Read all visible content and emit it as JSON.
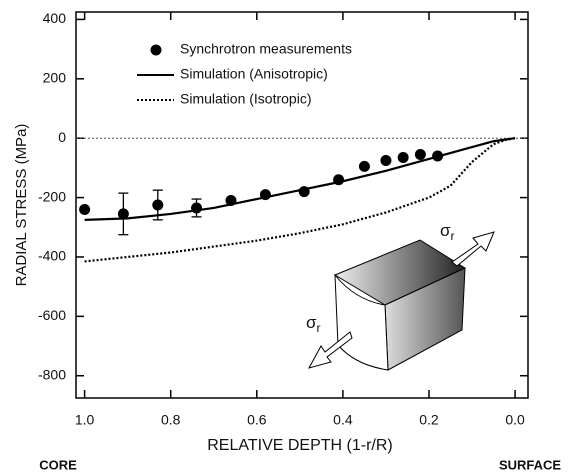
{
  "chart_data": {
    "type": "line",
    "ylabel": "RADIAL STRESS (MPa)",
    "xlabel": "RELATIVE DEPTH (1-r/R)",
    "x_end_labels": [
      "CORE",
      "SURFACE"
    ],
    "xlim": [
      1.02,
      -0.03
    ],
    "ylim": [
      -875,
      425
    ],
    "xticks": [
      {
        "value": 1,
        "label": "1.0"
      },
      0.8,
      0.6,
      0.4,
      0.2,
      {
        "value": 0,
        "label": "0.0"
      }
    ],
    "yticks": [
      -800,
      -600,
      -400,
      -200,
      0,
      200,
      400
    ],
    "zero_line": true,
    "series": [
      {
        "name": "Synchrotron measurements",
        "color": "#000000",
        "marker": "circle",
        "x": [
          1.0,
          0.91,
          0.83,
          0.74,
          0.66,
          0.58,
          0.49,
          0.41,
          0.35,
          0.3,
          0.26,
          0.22,
          0.18
        ],
        "values": [
          -240,
          -255,
          -225,
          -235,
          -210,
          -190,
          -180,
          -140,
          -95,
          -75,
          -65,
          -55,
          -60
        ],
        "errors": [
          null,
          70,
          50,
          30,
          null,
          null,
          null,
          null,
          null,
          null,
          null,
          null,
          null
        ]
      },
      {
        "name": "Simulation (Anisotropic)",
        "color": "#000000",
        "dash": "solid",
        "x": [
          1.0,
          0.9,
          0.8,
          0.7,
          0.6,
          0.5,
          0.4,
          0.3,
          0.2,
          0.1,
          0.05,
          0.0
        ],
        "values": [
          -275,
          -270,
          -255,
          -235,
          -205,
          -175,
          -145,
          -110,
          -70,
          -30,
          -10,
          0
        ]
      },
      {
        "name": "Simulation (Isotropic)",
        "color": "#000000",
        "dash": "dotted",
        "x": [
          1.0,
          0.9,
          0.8,
          0.7,
          0.6,
          0.5,
          0.4,
          0.3,
          0.2,
          0.15,
          0.1,
          0.05,
          0.02,
          0.0
        ],
        "values": [
          -415,
          -400,
          -385,
          -365,
          -345,
          -320,
          -290,
          -250,
          -200,
          -160,
          -80,
          -20,
          -5,
          0
        ]
      }
    ],
    "annotations": [
      {
        "symbol": "σ",
        "sub": "r"
      },
      {
        "symbol": "σ",
        "sub": "r"
      }
    ]
  }
}
